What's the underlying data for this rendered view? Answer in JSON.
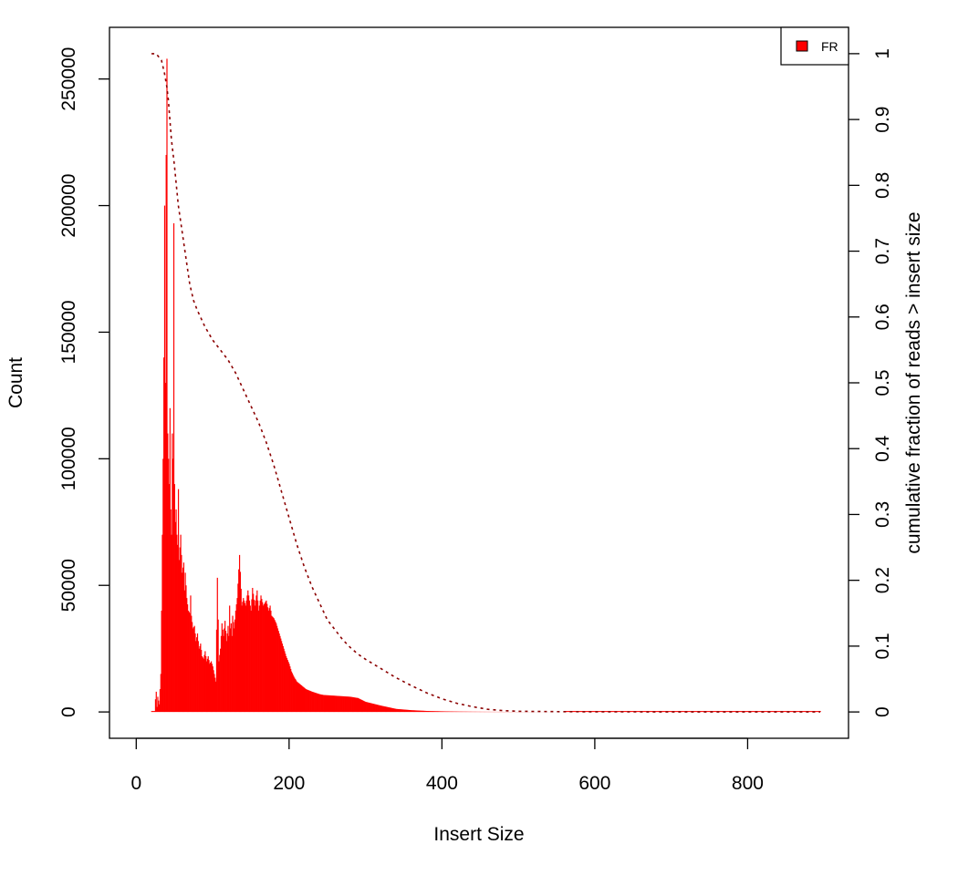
{
  "chart_data": {
    "type": "bar",
    "xlabel": "Insert Size",
    "ylabel": "Count",
    "y2label": "cumulative fraction of reads > insert size",
    "xlim": [
      -35,
      932
    ],
    "ylim": [
      -10400,
      270400
    ],
    "y2lim": [
      -0.04,
      1.04
    ],
    "xticks": [
      0,
      200,
      400,
      600,
      800
    ],
    "yticks": [
      0,
      50000,
      100000,
      150000,
      200000,
      250000
    ],
    "y2ticks": [
      0,
      0.1,
      0.2,
      0.3,
      0.4,
      0.5,
      0.6,
      0.7,
      0.8,
      0.9,
      1
    ],
    "xtick_labels": [
      "0",
      "200",
      "400",
      "600",
      "800"
    ],
    "ytick_labels": [
      "0",
      "50000",
      "100000",
      "150000",
      "200000",
      "250000"
    ],
    "y2tick_labels": [
      "0",
      "0.1",
      "0.2",
      "0.3",
      "0.4",
      "0.5",
      "0.6",
      "0.7",
      "0.8",
      "0.9",
      "1"
    ],
    "legend": {
      "label": "FR",
      "color": "#ff0000",
      "position": "top-right"
    },
    "grid": false,
    "series": [
      {
        "name": "FR",
        "type": "histogram",
        "color": "#ff0000",
        "x_range": [
          20,
          895
        ],
        "x_step": 1,
        "profile_x": [
          20,
          21,
          22,
          24,
          25,
          26,
          27,
          28,
          30,
          32,
          33,
          34,
          35,
          36,
          37,
          38,
          39,
          40,
          41,
          42,
          43,
          44,
          45,
          46,
          47,
          48,
          49,
          50,
          51,
          52,
          53,
          54,
          55,
          56,
          57,
          58,
          59,
          60,
          62,
          63,
          64,
          66,
          68,
          70,
          71,
          72,
          74,
          76,
          78,
          80,
          82,
          84,
          86,
          88,
          90,
          92,
          94,
          96,
          98,
          100,
          102,
          104,
          106,
          108,
          110,
          112,
          114,
          116,
          118,
          120,
          121,
          122,
          123,
          124,
          125,
          126,
          128,
          130,
          132,
          135,
          138,
          140,
          143,
          146,
          150,
          152,
          155,
          158,
          160,
          163,
          166,
          170,
          173,
          175,
          177,
          180,
          183,
          186,
          190,
          193,
          196,
          200,
          203,
          206,
          210,
          214,
          218,
          222,
          226,
          230,
          235,
          240,
          245,
          250,
          255,
          260,
          270,
          280,
          290,
          300,
          320,
          340,
          360,
          380,
          400,
          420,
          440,
          460,
          480,
          500,
          530,
          560,
          600,
          650,
          700,
          800,
          895
        ],
        "profile_y": [
          0,
          0,
          0,
          0,
          5000,
          8000,
          2000,
          6000,
          3000,
          15000,
          40000,
          70000,
          100000,
          140000,
          200000,
          130000,
          220000,
          258000,
          110000,
          100000,
          90000,
          120000,
          80000,
          70000,
          110000,
          100000,
          193000,
          90000,
          75000,
          80000,
          70000,
          66000,
          88000,
          60000,
          65000,
          70000,
          62000,
          55000,
          59000,
          48000,
          55000,
          45000,
          40000,
          39000,
          46000,
          38000,
          33000,
          34000,
          28000,
          31000,
          25000,
          27000,
          22000,
          21000,
          24000,
          20000,
          22000,
          19000,
          20000,
          18000,
          15000,
          12000,
          53000,
          20000,
          25000,
          35000,
          30000,
          36000,
          28000,
          34000,
          30000,
          42000,
          33000,
          35000,
          30000,
          38000,
          33000,
          40000,
          45000,
          62000,
          42000,
          45000,
          42000,
          48000,
          40000,
          49000,
          42000,
          48000,
          40000,
          46000,
          42000,
          44000,
          40000,
          42000,
          38000,
          37000,
          35000,
          32000,
          28000,
          25000,
          22000,
          19000,
          16000,
          14000,
          12000,
          11000,
          10000,
          9000,
          8500,
          8000,
          7500,
          7000,
          6700,
          6600,
          6500,
          6400,
          6200,
          6000,
          5500,
          4000,
          2500,
          1200,
          700,
          400,
          250,
          150,
          100,
          70,
          50,
          30,
          15,
          0,
          0,
          0,
          0,
          0,
          0
        ]
      },
      {
        "name": "cumulative fraction of reads > insert size",
        "type": "line",
        "style": "dashed",
        "color": "#8b0000",
        "axis": "right",
        "x": [
          20,
          26,
          33,
          37,
          40,
          42,
          44,
          46,
          50,
          55,
          60,
          65,
          70,
          75,
          80,
          90,
          100,
          110,
          120,
          130,
          140,
          150,
          160,
          170,
          180,
          190,
          200,
          210,
          220,
          230,
          240,
          250,
          260,
          270,
          280,
          290,
          300,
          320,
          340,
          360,
          380,
          400,
          420,
          440,
          460,
          480,
          500,
          550,
          600,
          700,
          895
        ],
        "y": [
          1.0,
          1.0,
          0.99,
          0.97,
          0.95,
          0.93,
          0.9,
          0.87,
          0.83,
          0.77,
          0.73,
          0.69,
          0.65,
          0.625,
          0.61,
          0.585,
          0.565,
          0.55,
          0.535,
          0.515,
          0.49,
          0.465,
          0.44,
          0.41,
          0.375,
          0.335,
          0.295,
          0.255,
          0.22,
          0.19,
          0.165,
          0.14,
          0.125,
          0.11,
          0.098,
          0.088,
          0.08,
          0.066,
          0.052,
          0.04,
          0.029,
          0.02,
          0.013,
          0.008,
          0.004,
          0.002,
          0.001,
          0.0005,
          0.0002,
          0.0001,
          0.0
        ]
      }
    ]
  }
}
